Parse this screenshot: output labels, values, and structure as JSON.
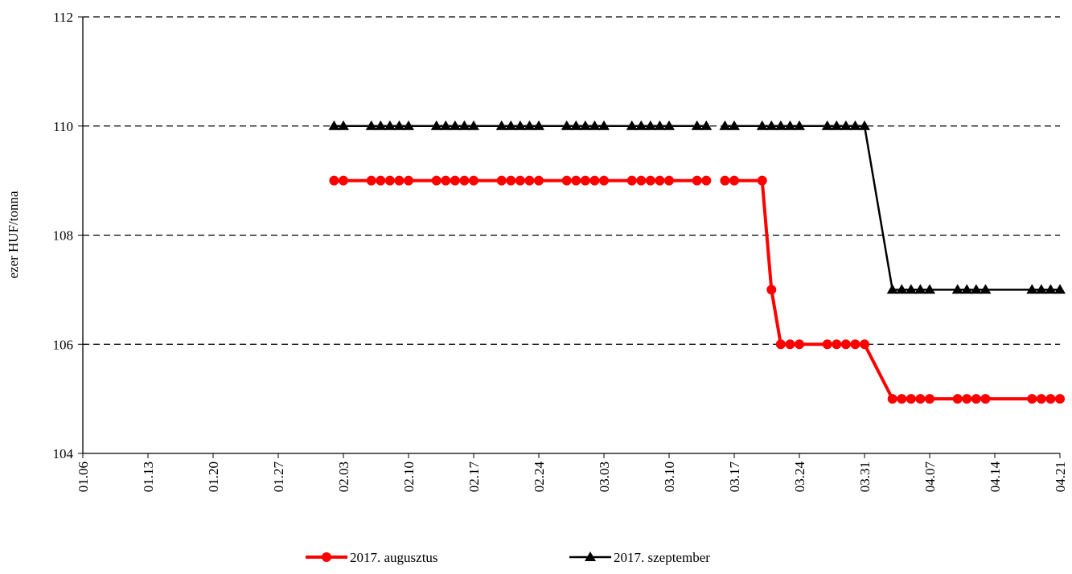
{
  "chart_data": {
    "type": "line",
    "y_label": "ezer HUF/tonna",
    "x": [
      "02.02",
      "02.03",
      "02.06",
      "02.07",
      "02.08",
      "02.09",
      "02.10",
      "02.13",
      "02.14",
      "02.15",
      "02.16",
      "02.17",
      "02.20",
      "02.21",
      "02.22",
      "02.23",
      "02.24",
      "02.27",
      "02.28",
      "03.01",
      "03.02",
      "03.03",
      "03.06",
      "03.07",
      "03.08",
      "03.09",
      "03.10",
      "03.13",
      "03.14",
      "03.15",
      "03.16",
      "03.17",
      "03.20",
      "03.21",
      "03.22",
      "03.23",
      "03.24",
      "03.27",
      "03.28",
      "03.29",
      "03.30",
      "03.31",
      "04.03",
      "04.04",
      "04.05",
      "04.06",
      "04.07",
      "04.10",
      "04.11",
      "04.12",
      "04.13",
      "04.18",
      "04.19",
      "04.20",
      "04.21"
    ],
    "series": [
      {
        "name": "2017. augusztus",
        "color": "#ff0000",
        "marker": "circle",
        "values": [
          109,
          109,
          109,
          109,
          109,
          109,
          109,
          109,
          109,
          109,
          109,
          109,
          109,
          109,
          109,
          109,
          109,
          109,
          109,
          109,
          109,
          109,
          109,
          109,
          109,
          109,
          109,
          109,
          109,
          null,
          109,
          109,
          109,
          107,
          106,
          106,
          106,
          106,
          106,
          106,
          106,
          106,
          105,
          105,
          105,
          105,
          105,
          105,
          105,
          105,
          105,
          105,
          105,
          105,
          105
        ]
      },
      {
        "name": "2017. szeptember",
        "color": "#000000",
        "marker": "triangle",
        "values": [
          110,
          110,
          110,
          110,
          110,
          110,
          110,
          110,
          110,
          110,
          110,
          110,
          110,
          110,
          110,
          110,
          110,
          110,
          110,
          110,
          110,
          110,
          110,
          110,
          110,
          110,
          110,
          110,
          110,
          null,
          110,
          110,
          110,
          110,
          110,
          110,
          110,
          110,
          110,
          110,
          110,
          110,
          107,
          107,
          107,
          107,
          107,
          107,
          107,
          107,
          107,
          107,
          107,
          107,
          107
        ]
      }
    ],
    "xlim": [
      "01.06",
      "04.21"
    ],
    "xticks": [
      "01.06",
      "01.13",
      "01.20",
      "01.27",
      "02.03",
      "02.10",
      "02.17",
      "02.24",
      "03.03",
      "03.10",
      "03.17",
      "03.24",
      "03.31",
      "04.07",
      "04.14",
      "04.21"
    ],
    "ylim": [
      104,
      112
    ],
    "yticks": [
      104,
      106,
      108,
      110,
      112
    ],
    "grid": true,
    "legend": "bottom"
  }
}
